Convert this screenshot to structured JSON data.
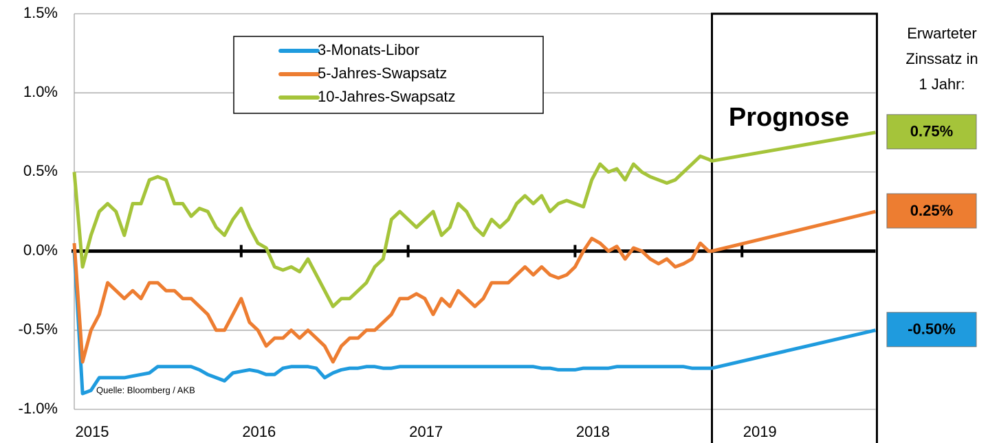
{
  "chart_data": {
    "type": "line",
    "x": [
      2015.0,
      2015.05,
      2015.1,
      2015.15,
      2015.2,
      2015.25,
      2015.3,
      2015.35,
      2015.4,
      2015.45,
      2015.5,
      2015.55,
      2015.6,
      2015.65,
      2015.7,
      2015.75,
      2015.8,
      2015.85,
      2015.9,
      2015.95,
      2016.0,
      2016.05,
      2016.1,
      2016.15,
      2016.2,
      2016.25,
      2016.3,
      2016.35,
      2016.4,
      2016.45,
      2016.5,
      2016.55,
      2016.6,
      2016.65,
      2016.7,
      2016.75,
      2016.8,
      2016.85,
      2016.9,
      2016.95,
      2017.0,
      2017.05,
      2017.1,
      2017.15,
      2017.2,
      2017.25,
      2017.3,
      2017.35,
      2017.4,
      2017.45,
      2017.5,
      2017.55,
      2017.6,
      2017.65,
      2017.7,
      2017.75,
      2017.8,
      2017.85,
      2017.9,
      2017.95,
      2018.0,
      2018.05,
      2018.1,
      2018.15,
      2018.2,
      2018.25,
      2018.3,
      2018.35,
      2018.4,
      2018.45,
      2018.5,
      2018.55,
      2018.6,
      2018.65,
      2018.7,
      2018.75,
      2018.8,
      2018.82,
      2019.8
    ],
    "series": [
      {
        "name": "3-Monats-Libor",
        "color": "#1f9bde",
        "values": [
          0.0,
          -0.9,
          -0.88,
          -0.8,
          -0.8,
          -0.8,
          -0.8,
          -0.79,
          -0.78,
          -0.77,
          -0.73,
          -0.73,
          -0.73,
          -0.73,
          -0.73,
          -0.75,
          -0.78,
          -0.8,
          -0.82,
          -0.77,
          -0.76,
          -0.75,
          -0.76,
          -0.78,
          -0.78,
          -0.74,
          -0.73,
          -0.73,
          -0.73,
          -0.74,
          -0.8,
          -0.77,
          -0.75,
          -0.74,
          -0.74,
          -0.73,
          -0.73,
          -0.74,
          -0.74,
          -0.73,
          -0.73,
          -0.73,
          -0.73,
          -0.73,
          -0.73,
          -0.73,
          -0.73,
          -0.73,
          -0.73,
          -0.73,
          -0.73,
          -0.73,
          -0.73,
          -0.73,
          -0.73,
          -0.73,
          -0.74,
          -0.74,
          -0.75,
          -0.75,
          -0.75,
          -0.74,
          -0.74,
          -0.74,
          -0.74,
          -0.73,
          -0.73,
          -0.73,
          -0.73,
          -0.73,
          -0.73,
          -0.73,
          -0.73,
          -0.73,
          -0.74,
          -0.74,
          -0.74,
          -0.74,
          -0.5
        ],
        "value_labels": [
          null,
          null,
          null,
          null,
          null,
          null,
          null,
          null,
          null,
          null,
          null,
          null,
          null,
          null,
          null,
          null,
          null,
          null,
          null,
          null,
          null,
          null,
          null,
          null,
          null,
          null,
          null,
          null,
          null,
          null,
          null,
          null,
          null,
          null,
          null,
          null,
          null,
          null,
          null,
          null,
          null,
          null,
          null,
          null,
          null,
          null,
          null,
          null,
          null,
          null,
          null,
          null,
          null,
          null,
          null,
          null,
          null,
          null,
          null,
          null,
          null,
          null,
          null,
          null,
          null,
          null,
          null,
          null,
          null,
          null,
          null,
          null,
          null,
          null,
          null,
          null,
          null,
          null,
          "-0.50%"
        ]
      },
      {
        "name": "5-Jahres-Swapsatz",
        "color": "#ed7d31",
        "values": [
          0.05,
          -0.7,
          -0.5,
          -0.4,
          -0.2,
          -0.25,
          -0.3,
          -0.25,
          -0.3,
          -0.2,
          -0.2,
          -0.25,
          -0.25,
          -0.3,
          -0.3,
          -0.35,
          -0.4,
          -0.5,
          -0.5,
          -0.4,
          -0.3,
          -0.45,
          -0.5,
          -0.6,
          -0.55,
          -0.55,
          -0.5,
          -0.55,
          -0.5,
          -0.55,
          -0.6,
          -0.7,
          -0.6,
          -0.55,
          -0.55,
          -0.5,
          -0.5,
          -0.45,
          -0.4,
          -0.3,
          -0.3,
          -0.27,
          -0.3,
          -0.4,
          -0.3,
          -0.35,
          -0.25,
          -0.3,
          -0.35,
          -0.3,
          -0.2,
          -0.2,
          -0.2,
          -0.15,
          -0.1,
          -0.15,
          -0.1,
          -0.15,
          -0.17,
          -0.15,
          -0.1,
          0.0,
          0.08,
          0.05,
          0.0,
          0.03,
          -0.05,
          0.02,
          0.0,
          -0.05,
          -0.08,
          -0.05,
          -0.1,
          -0.08,
          -0.05,
          0.05,
          0.0,
          0.0,
          0.25
        ],
        "value_labels": [
          null,
          null,
          null,
          null,
          null,
          null,
          null,
          null,
          null,
          null,
          null,
          null,
          null,
          null,
          null,
          null,
          null,
          null,
          null,
          null,
          null,
          null,
          null,
          null,
          null,
          null,
          null,
          null,
          null,
          null,
          null,
          null,
          null,
          null,
          null,
          null,
          null,
          null,
          null,
          null,
          null,
          null,
          null,
          null,
          null,
          null,
          null,
          null,
          null,
          null,
          null,
          null,
          null,
          null,
          null,
          null,
          null,
          null,
          null,
          null,
          null,
          null,
          null,
          null,
          null,
          null,
          null,
          null,
          null,
          null,
          null,
          null,
          null,
          null,
          null,
          null,
          null,
          null,
          "0.25%"
        ]
      },
      {
        "name": "10-Jahres-Swapsatz",
        "color": "#a5c43a",
        "values": [
          0.5,
          -0.1,
          0.1,
          0.25,
          0.3,
          0.25,
          0.1,
          0.3,
          0.3,
          0.45,
          0.47,
          0.45,
          0.3,
          0.3,
          0.22,
          0.27,
          0.25,
          0.15,
          0.1,
          0.2,
          0.27,
          0.15,
          0.05,
          0.02,
          -0.1,
          -0.12,
          -0.1,
          -0.13,
          -0.05,
          -0.15,
          -0.25,
          -0.35,
          -0.3,
          -0.3,
          -0.25,
          -0.2,
          -0.1,
          -0.05,
          0.2,
          0.25,
          0.2,
          0.15,
          0.2,
          0.25,
          0.1,
          0.15,
          0.3,
          0.25,
          0.15,
          0.1,
          0.2,
          0.15,
          0.2,
          0.3,
          0.35,
          0.3,
          0.35,
          0.25,
          0.3,
          0.32,
          0.3,
          0.28,
          0.45,
          0.55,
          0.5,
          0.52,
          0.45,
          0.55,
          0.5,
          0.47,
          0.45,
          0.43,
          0.45,
          0.5,
          0.55,
          0.6,
          0.58,
          0.57,
          0.75
        ],
        "value_labels": [
          null,
          null,
          null,
          null,
          null,
          null,
          null,
          null,
          null,
          null,
          null,
          null,
          null,
          null,
          null,
          null,
          null,
          null,
          null,
          null,
          null,
          null,
          null,
          null,
          null,
          null,
          null,
          null,
          null,
          null,
          null,
          null,
          null,
          null,
          null,
          null,
          null,
          null,
          null,
          null,
          null,
          null,
          null,
          null,
          null,
          null,
          null,
          null,
          null,
          null,
          null,
          null,
          null,
          null,
          null,
          null,
          null,
          null,
          null,
          null,
          null,
          null,
          null,
          null,
          null,
          null,
          null,
          null,
          null,
          null,
          null,
          null,
          null,
          null,
          null,
          null,
          null,
          null,
          "0.75%"
        ]
      }
    ],
    "xlim": [
      2015,
      2019.8
    ],
    "xticks": [
      2015,
      2016,
      2017,
      2018,
      2019
    ],
    "ylim": [
      -1.0,
      1.5
    ],
    "yticks": [
      {
        "value": -1.0,
        "label": "-1.0%"
      },
      {
        "value": -0.5,
        "label": "-0.5%"
      },
      {
        "value": 0.0,
        "label": "0.0%"
      },
      {
        "value": 0.5,
        "label": "0.5%"
      },
      {
        "value": 1.0,
        "label": "1.0%"
      },
      {
        "value": 1.5,
        "label": "1.5%"
      }
    ],
    "grid": true,
    "legend": "upper-left",
    "forecast": {
      "label": "Prognose",
      "x": 2018.82
    },
    "side_note": [
      "Erwarteter",
      "Zinssatz in",
      "1 Jahr:"
    ],
    "source": "Quelle: Bloomberg / AKB"
  }
}
